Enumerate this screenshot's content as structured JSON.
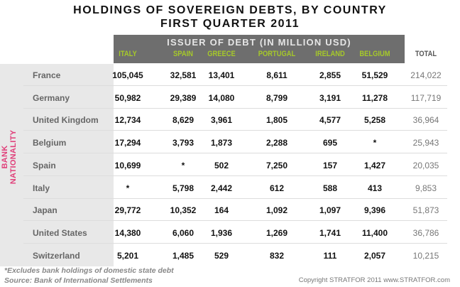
{
  "title": "HOLDINGS OF SOVEREIGN DEBTS, BY COUNTRY",
  "subtitle": "FIRST QUARTER 2011",
  "issuer_label": "ISSUER OF DEBT (IN MILLION USD)",
  "row_axis_label": "BANK NATIONALITY",
  "columns": [
    "ITALY",
    "SPAIN",
    "GREECE",
    "PORTUGAL",
    "IRELAND",
    "BELGIUM",
    "TOTAL"
  ],
  "accent_color": "#a6c92a",
  "rows": [
    {
      "country": "France",
      "values": [
        "105,045",
        "32,581",
        "13,401",
        "8,611",
        "2,855",
        "51,529",
        "214,022"
      ]
    },
    {
      "country": "Germany",
      "values": [
        "50,982",
        "29,389",
        "14,080",
        "8,799",
        "3,191",
        "11,278",
        "117,719"
      ]
    },
    {
      "country": "United Kingdom",
      "values": [
        "12,734",
        "8,629",
        "3,961",
        "1,805",
        "4,577",
        "5,258",
        "36,964"
      ]
    },
    {
      "country": "Belgium",
      "values": [
        "17,294",
        "3,793",
        "1,873",
        "2,288",
        "695",
        "*",
        "25,943"
      ]
    },
    {
      "country": "Spain",
      "values": [
        "10,699",
        "*",
        "502",
        "7,250",
        "157",
        "1,427",
        "20,035"
      ]
    },
    {
      "country": "Italy",
      "values": [
        "*",
        "5,798",
        "2,442",
        "612",
        "588",
        "413",
        "9,853"
      ]
    },
    {
      "country": "Japan",
      "values": [
        "29,772",
        "10,352",
        "164",
        "1,092",
        "1,097",
        "9,396",
        "51,873"
      ]
    },
    {
      "country": "United States",
      "values": [
        "14,380",
        "6,060",
        "1,936",
        "1,269",
        "1,741",
        "11,400",
        "36,786"
      ]
    },
    {
      "country": "Switzerland",
      "values": [
        "5,201",
        "1,485",
        "529",
        "832",
        "111",
        "2,057",
        "10,215"
      ]
    }
  ],
  "footnote": "*Excludes bank holdings of domestic state debt",
  "source": "Source: Bank of International Settlements",
  "copyright": "Copyright STRATFOR 2011   www.STRATFOR.com"
}
